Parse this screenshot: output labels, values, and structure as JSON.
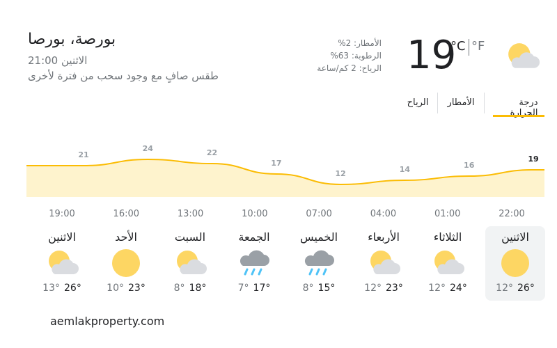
{
  "header": {
    "location": "بورصة، بورصا",
    "datetime": "الاثنين 21:00",
    "condition": "طقس صافٍ مع وجود سحب من فترة لأخرى"
  },
  "current": {
    "temperature": 19,
    "unit_c": "°C",
    "unit_f": "°F",
    "precipitation": "الأمطار: 2%",
    "humidity": "الرطوبة: 63%",
    "wind": "الرياح: 2 كم/ساعة"
  },
  "tabs": [
    "درجة الحرارة",
    "الأمطار",
    "الرياح"
  ],
  "chart_data": {
    "type": "area",
    "categories": [
      "22:00",
      "01:00",
      "04:00",
      "07:00",
      "10:00",
      "13:00",
      "16:00",
      "19:00"
    ],
    "values": [
      19,
      16,
      14,
      12,
      17,
      22,
      24,
      21
    ],
    "color": "#fbbc04",
    "fill": "#fef3cd"
  },
  "days": [
    {
      "name": "الاثنين",
      "high": "26°",
      "low": "12°"
    },
    {
      "name": "الثلاثاء",
      "high": "24°",
      "low": "12°"
    },
    {
      "name": "الأربعاء",
      "high": "23°",
      "low": "12°"
    },
    {
      "name": "الخميس",
      "high": "15°",
      "low": "8°"
    },
    {
      "name": "الجمعة",
      "high": "17°",
      "low": "7°"
    },
    {
      "name": "السبت",
      "high": "18°",
      "low": "8°"
    },
    {
      "name": "الأحد",
      "high": "23°",
      "low": "10°"
    },
    {
      "name": "الاثنين",
      "high": "26°",
      "low": "13°"
    }
  ],
  "footer": "aemlakproperty.com"
}
